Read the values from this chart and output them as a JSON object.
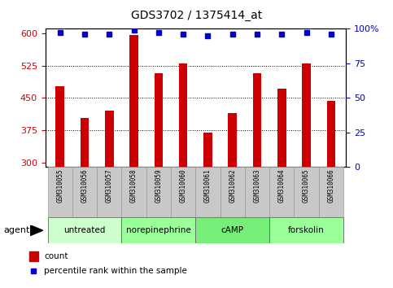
{
  "title": "GDS3702 / 1375414_at",
  "samples": [
    "GSM310055",
    "GSM310056",
    "GSM310057",
    "GSM310058",
    "GSM310059",
    "GSM310060",
    "GSM310061",
    "GSM310062",
    "GSM310063",
    "GSM310064",
    "GSM310065",
    "GSM310066"
  ],
  "counts": [
    477,
    403,
    420,
    595,
    507,
    530,
    370,
    415,
    508,
    472,
    530,
    443
  ],
  "percentiles": [
    97,
    96,
    96,
    99,
    97,
    96,
    95,
    96,
    96,
    96,
    97,
    96
  ],
  "ylim_left": [
    290,
    610
  ],
  "ylim_right": [
    0,
    100
  ],
  "yticks_left": [
    300,
    375,
    450,
    525,
    600
  ],
  "yticks_right": [
    0,
    25,
    50,
    75,
    100
  ],
  "bar_color": "#cc0000",
  "dot_color": "#0000cc",
  "bar_bottom": 290,
  "groups": [
    {
      "label": "untreated",
      "indices": [
        0,
        1,
        2
      ],
      "color": "#ccffcc"
    },
    {
      "label": "norepinephrine",
      "indices": [
        3,
        4,
        5
      ],
      "color": "#99ff99"
    },
    {
      "label": "cAMP",
      "indices": [
        6,
        7,
        8
      ],
      "color": "#77ee77"
    },
    {
      "label": "forskolin",
      "indices": [
        9,
        10,
        11
      ],
      "color": "#99ff99"
    }
  ],
  "grid_yticks": [
    375,
    450,
    525
  ],
  "legend_count_color": "#cc0000",
  "legend_dot_color": "#0000cc",
  "sample_bg": "#c8c8c8",
  "plot_bg": "#ffffff",
  "bar_width": 0.35
}
